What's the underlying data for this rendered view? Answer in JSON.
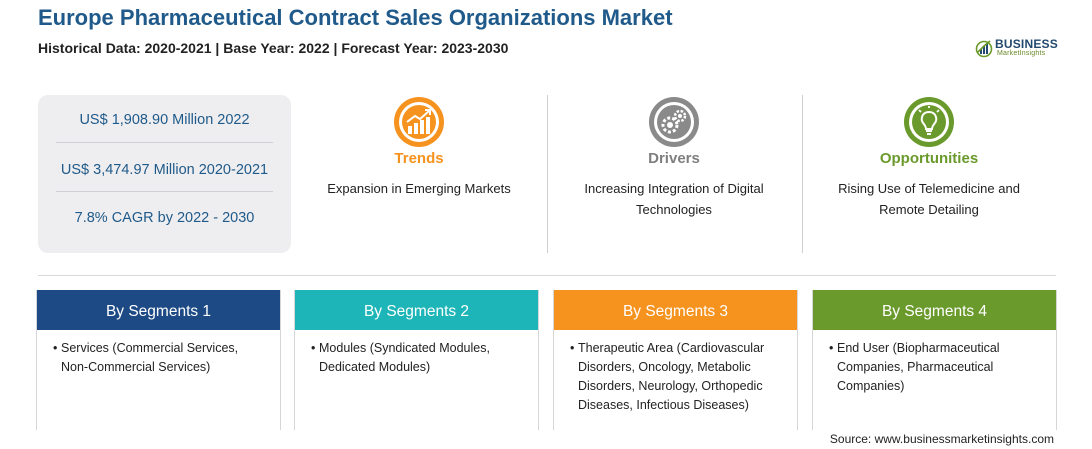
{
  "header": {
    "title": "Europe Pharmaceutical Contract Sales Organizations Market",
    "subtitle": "Historical Data: 2020-2021 | Base Year: 2022 | Forecast Year: 2023-2030"
  },
  "logo": {
    "word": "BUSINESS",
    "sub": "MarketInsights"
  },
  "stats": [
    "US$ 1,908.90 Million 2022",
    "US$ 3,474.97 Million 2020-2021",
    "7.8% CAGR by 2022 - 2030"
  ],
  "factors": {
    "trends": {
      "title": "Trends",
      "text": "Expansion in Emerging Markets",
      "color": "#f6921e",
      "icon": "growth-chart-icon"
    },
    "drivers": {
      "title": "Drivers",
      "text": "Increasing Integration of Digital Technologies",
      "color": "#7f7f7f",
      "icon": "gears-icon"
    },
    "opportunities": {
      "title": "Opportunities",
      "text": "Rising Use of Telemedicine and Remote Detailing",
      "color": "#6b9a2c",
      "icon": "lightbulb-icon"
    }
  },
  "segments": [
    {
      "title": "By Segments 1",
      "item": "Services (Commercial Services, Non-Commercial Services)",
      "color": "#1d4a85"
    },
    {
      "title": "By Segments 2",
      "item": "Modules (Syndicated Modules, Dedicated Modules)",
      "color": "#1db5b8"
    },
    {
      "title": "By Segments 3",
      "item": "Therapeutic Area (Cardiovascular Disorders, Oncology, Metabolic Disorders, Neurology, Orthopedic Diseases, Infectious Diseases)",
      "color": "#f6921e"
    },
    {
      "title": "By Segments 4",
      "item": "End User (Biopharmaceutical Companies, Pharmaceutical Companies)",
      "color": "#6b9a2c"
    }
  ],
  "source": "Source: www.businessmarketinsights.com"
}
